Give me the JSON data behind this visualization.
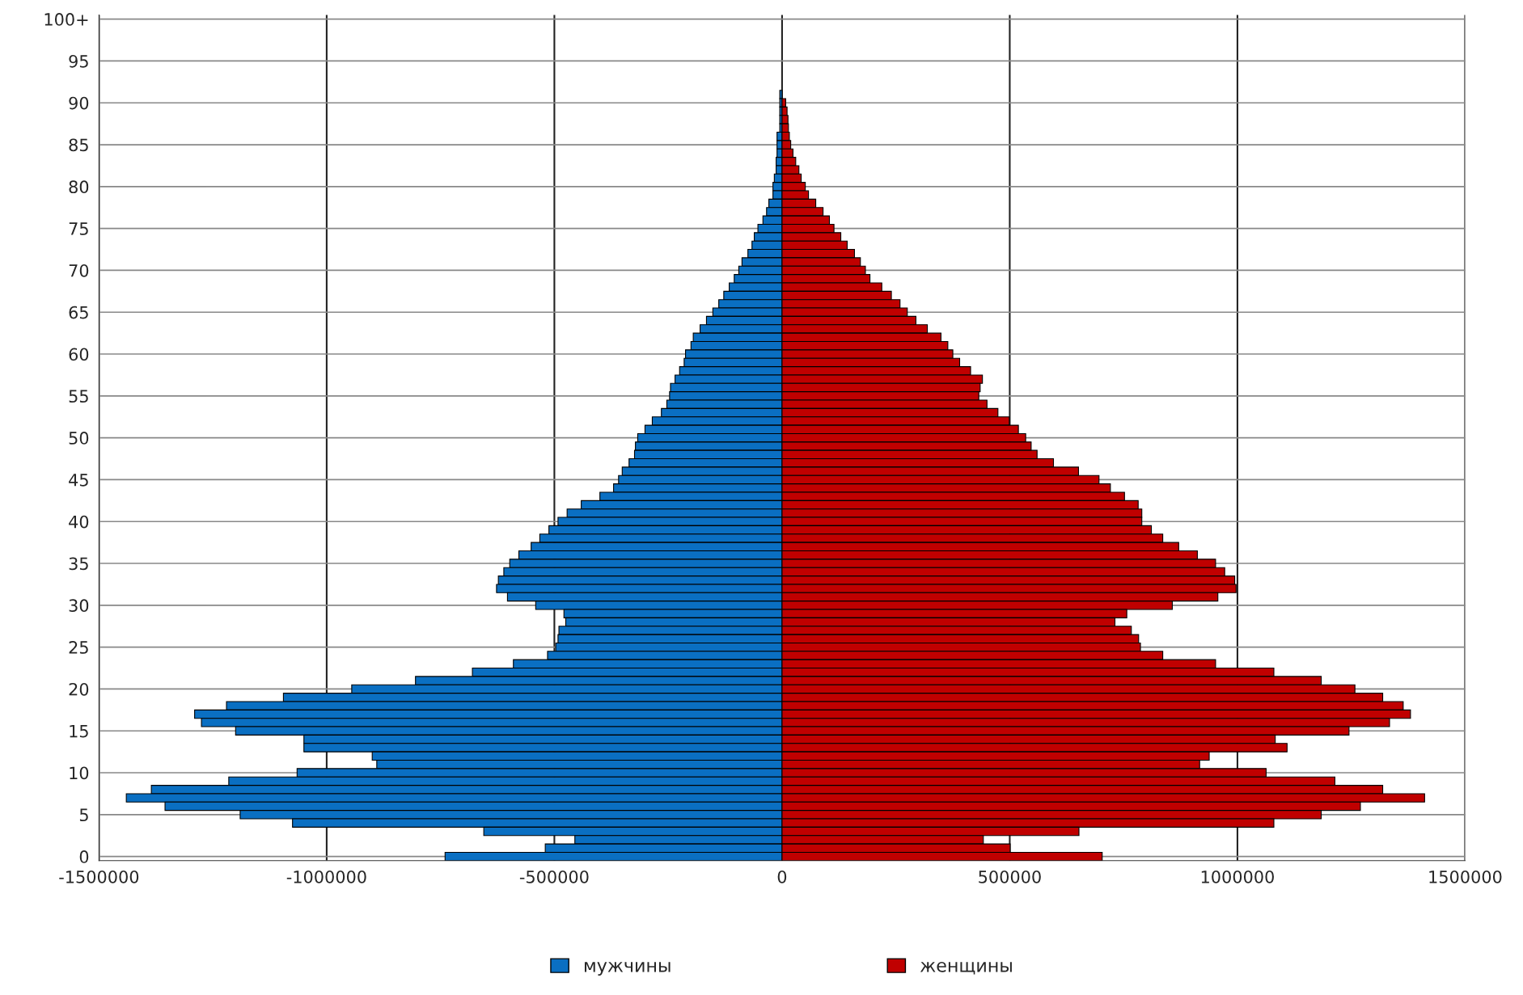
{
  "chart_data": {
    "type": "bar",
    "orientation": "horizontal",
    "stacked": true,
    "categories": [
      "100+",
      null,
      null,
      null,
      null,
      "95",
      null,
      null,
      null,
      null,
      "90",
      null,
      null,
      null,
      null,
      "85",
      null,
      null,
      null,
      null,
      "80",
      null,
      null,
      null,
      null,
      "75",
      null,
      null,
      null,
      null,
      "70",
      null,
      null,
      null,
      null,
      "65",
      null,
      null,
      null,
      null,
      "60",
      null,
      null,
      null,
      null,
      "55",
      null,
      null,
      null,
      null,
      "50",
      null,
      null,
      null,
      null,
      "45",
      null,
      null,
      null,
      null,
      "40",
      null,
      null,
      null,
      null,
      "35",
      null,
      null,
      null,
      null,
      "30",
      null,
      null,
      null,
      null,
      "25",
      null,
      null,
      null,
      null,
      "20",
      null,
      null,
      null,
      null,
      "15",
      null,
      null,
      null,
      null,
      "10",
      null,
      null,
      null,
      null,
      "5",
      null,
      null,
      null,
      null,
      "0"
    ],
    "series": [
      {
        "name": "мужчины",
        "color": "#0a6fc2",
        "values": [
          0,
          0,
          0,
          0,
          0,
          0,
          0,
          0,
          0,
          -5000,
          -5000,
          -5000,
          -5000,
          -5000,
          -11000,
          -11000,
          -11000,
          -13000,
          -13000,
          -17000,
          -20000,
          -20000,
          -29000,
          -34000,
          -42000,
          -53000,
          -61000,
          -66000,
          -75000,
          -88000,
          -95000,
          -105000,
          -116000,
          -128000,
          -139000,
          -152000,
          -166000,
          -180000,
          -195000,
          -200000,
          -212000,
          -215000,
          -225000,
          -235000,
          -245000,
          -247000,
          -253000,
          -265000,
          -285000,
          -301000,
          -317000,
          -322000,
          -324000,
          -336000,
          -351000,
          -359000,
          -370000,
          -400000,
          -441000,
          -472000,
          -492000,
          -512000,
          -532000,
          -551000,
          -578000,
          -598000,
          -611000,
          -623000,
          -627000,
          -603000,
          -541000,
          -479000,
          -475000,
          -490000,
          -492000,
          -497000,
          -515000,
          -590000,
          -680000,
          -805000,
          -945000,
          -1095000,
          -1220000,
          -1290000,
          -1275000,
          -1200000,
          -1050000,
          -1050000,
          -900000,
          -890000,
          -1065000,
          -1215000,
          -1385000,
          -1440000,
          -1355000,
          -1190000,
          -1075000,
          -655000,
          -455000,
          -520000,
          -740000
        ]
      },
      {
        "name": "женщины",
        "color": "#c00000",
        "values": [
          0,
          0,
          0,
          0,
          0,
          0,
          0,
          0,
          0,
          0,
          8000,
          11000,
          13000,
          14000,
          16000,
          19000,
          24000,
          30000,
          37000,
          42000,
          51000,
          58000,
          74000,
          90000,
          104000,
          114000,
          129000,
          143000,
          159000,
          172000,
          183000,
          193000,
          219000,
          240000,
          259000,
          275000,
          294000,
          319000,
          349000,
          364000,
          375000,
          390000,
          414000,
          440000,
          435000,
          432000,
          450000,
          474000,
          499000,
          519000,
          535000,
          547000,
          560000,
          596000,
          651000,
          696000,
          721000,
          752000,
          782000,
          790000,
          790000,
          811000,
          836000,
          871000,
          912000,
          952000,
          972000,
          994000,
          997000,
          957000,
          857000,
          757000,
          731000,
          767000,
          783000,
          787000,
          836000,
          952000,
          1080000,
          1184000,
          1258000,
          1319000,
          1364000,
          1380000,
          1334000,
          1245000,
          1083000,
          1109000,
          938000,
          917000,
          1063000,
          1214000,
          1319000,
          1411000,
          1270000,
          1184000,
          1080000,
          652000,
          442000,
          501000,
          703000
        ]
      }
    ],
    "xlim": [
      -1500000,
      1500000
    ],
    "xticks": [
      -1500000,
      -1000000,
      -500000,
      0,
      500000,
      1000000,
      1500000
    ],
    "grid": true,
    "legend": "bottom"
  }
}
